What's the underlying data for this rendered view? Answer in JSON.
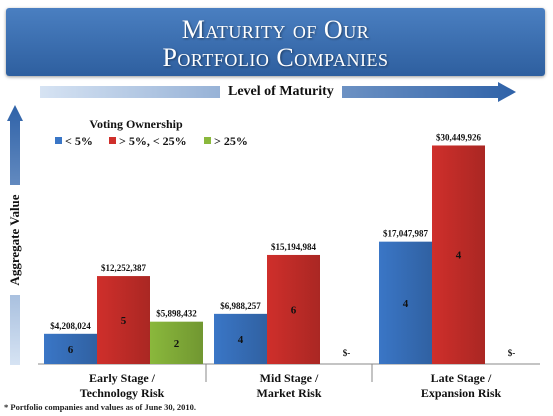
{
  "header": {
    "title_line1": "Maturity of Our",
    "title_line2": "Portfolio Companies"
  },
  "axis": {
    "maturity_label": "Level of Maturity",
    "value_label": "Aggregate Value"
  },
  "colors": {
    "banner": "#3a6fb2",
    "arrow": "#2f62a8",
    "series_lt5": "#3a76c6",
    "series_5to25": "#cf2f2b",
    "series_gt25": "#8ab83c"
  },
  "footnote": "* Portfolio companies and values as of June 30, 2010.",
  "chart_data": {
    "type": "bar",
    "ylabel": "Aggregate Value",
    "ylim": [
      0,
      34000000
    ],
    "grid": false,
    "legend": {
      "title": "Voting Ownership",
      "placement": "top-left"
    },
    "categories": [
      [
        "Early Stage /",
        "Technology Risk"
      ],
      [
        "Mid Stage /",
        "Market Risk"
      ],
      [
        "Late Stage /",
        "Expansion Risk"
      ]
    ],
    "series": [
      {
        "name": "< 5%",
        "color": "#3a76c6",
        "values": [
          4208024,
          6988257,
          17047987
        ],
        "value_labels": [
          "$4,208,024",
          "$6,988,257",
          "$17,047,987"
        ],
        "counts": [
          "6",
          "4",
          "4"
        ]
      },
      {
        "name": "> 5%, < 25%",
        "color": "#cf2f2b",
        "values": [
          12252387,
          15194984,
          30449926
        ],
        "value_labels": [
          "$12,252,387",
          "$15,194,984",
          "$30,449,926"
        ],
        "counts": [
          "5",
          "6",
          "4"
        ]
      },
      {
        "name": "> 25%",
        "color": "#8ab83c",
        "values": [
          5898432,
          0,
          0
        ],
        "value_labels": [
          "$5,898,432",
          "$-",
          "$-"
        ],
        "counts": [
          "2",
          "",
          ""
        ]
      }
    ]
  }
}
